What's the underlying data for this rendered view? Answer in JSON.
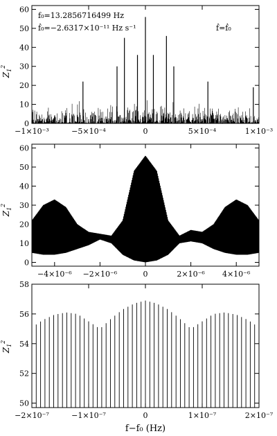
{
  "chart_data": [
    {
      "type": "line",
      "panel": "top",
      "ylabel": "Z_1^2",
      "ylim": [
        0,
        62
      ],
      "xlim": [
        -0.001,
        0.001
      ],
      "x_ticks": [
        -0.001,
        -0.0005,
        0,
        0.0005,
        0.001
      ],
      "x_tick_labels": [
        "−1×10⁻³",
        "−5×10⁻⁴",
        "0",
        "5×10⁻⁴",
        "1×10⁻³"
      ],
      "y_ticks": [
        0,
        10,
        20,
        30,
        40,
        50,
        60
      ],
      "y_tick_labels": [
        "0",
        "10",
        "20",
        "30",
        "40",
        "50",
        "60"
      ],
      "annotations": {
        "f0": "f₀=13.2856716499  Hz",
        "fdot0": "ḟ₀=−2.6317×10⁻¹¹  Hz s⁻¹",
        "condition": "ḟ=ḟ₀"
      },
      "peaks": [
        {
          "x": -0.00055,
          "y": 22
        },
        {
          "x": -0.00025,
          "y": 30
        },
        {
          "x": -0.000185,
          "y": 45
        },
        {
          "x": -7e-05,
          "y": 36
        },
        {
          "x": 0,
          "y": 56
        },
        {
          "x": 7e-05,
          "y": 36
        },
        {
          "x": 0.000185,
          "y": 46
        },
        {
          "x": 0.00025,
          "y": 30
        },
        {
          "x": 0.00055,
          "y": 22
        },
        {
          "x": 0.00095,
          "y": 19
        }
      ]
    },
    {
      "type": "line",
      "panel": "middle",
      "ylabel": "Z_1^2",
      "ylim": [
        -2,
        62
      ],
      "xlim": [
        -5e-06,
        5e-06
      ],
      "x_ticks": [
        -4e-06,
        -2e-06,
        0,
        2e-06,
        4e-06
      ],
      "x_tick_labels": [
        "−4×10⁻⁶",
        "−2×10⁻⁶",
        "0",
        "2×10⁻⁶",
        "4×10⁻⁶"
      ],
      "y_ticks": [
        0,
        10,
        20,
        30,
        40,
        50,
        60
      ],
      "y_tick_labels": [
        "0",
        "10",
        "20",
        "30",
        "40",
        "50",
        "60"
      ],
      "envelope_x": [
        -5e-06,
        -4.5e-06,
        -4e-06,
        -3.5e-06,
        -3e-06,
        -2.5e-06,
        -2e-06,
        -1.5e-06,
        -1e-06,
        -5e-07,
        0,
        5e-07,
        1e-06,
        1.5e-06,
        2e-06,
        2.5e-06,
        3e-06,
        3.5e-06,
        4e-06,
        4.5e-06,
        5e-06
      ],
      "envelope_upper": [
        22,
        30,
        33,
        29,
        20,
        16,
        15,
        14,
        22,
        48,
        56,
        48,
        22,
        14,
        17,
        16,
        20,
        29,
        33,
        30,
        22
      ],
      "envelope_lower": [
        5,
        4,
        4,
        5,
        7,
        9,
        12,
        10,
        4,
        1,
        0,
        1,
        4,
        10,
        11,
        10,
        7,
        5,
        4,
        4,
        5
      ]
    },
    {
      "type": "line",
      "panel": "bottom",
      "ylabel": "Z_1^2",
      "xlabel": "f−f₀ (Hz)",
      "ylim": [
        49.7,
        58
      ],
      "xlim": [
        -2e-07,
        2e-07
      ],
      "x_ticks": [
        -2e-07,
        -1e-07,
        0,
        1e-07,
        2e-07
      ],
      "x_tick_labels": [
        "−2×10⁻⁷",
        "−1×10⁻⁷",
        "0",
        "1×10⁻⁷",
        "2×10⁻⁷"
      ],
      "y_ticks": [
        50,
        52,
        54,
        56,
        58
      ],
      "y_tick_labels": [
        "50",
        "52",
        "54",
        "56",
        "58"
      ],
      "envelope_x": [
        -2e-07,
        -1.8e-07,
        -1.6e-07,
        -1.4e-07,
        -1.2e-07,
        -1e-07,
        -8e-08,
        -6e-08,
        -4e-08,
        -2e-08,
        0,
        2e-08,
        4e-08,
        6e-08,
        8e-08,
        1e-07,
        1.2e-07,
        1.4e-07,
        1.6e-07,
        1.8e-07,
        2e-07
      ],
      "envelope_upper": [
        55.1,
        55.6,
        55.95,
        56.1,
        56.0,
        55.5,
        55.0,
        55.7,
        56.3,
        56.7,
        56.9,
        56.7,
        56.3,
        55.7,
        55.0,
        55.5,
        56.0,
        56.1,
        55.95,
        55.6,
        55.1
      ]
    }
  ]
}
